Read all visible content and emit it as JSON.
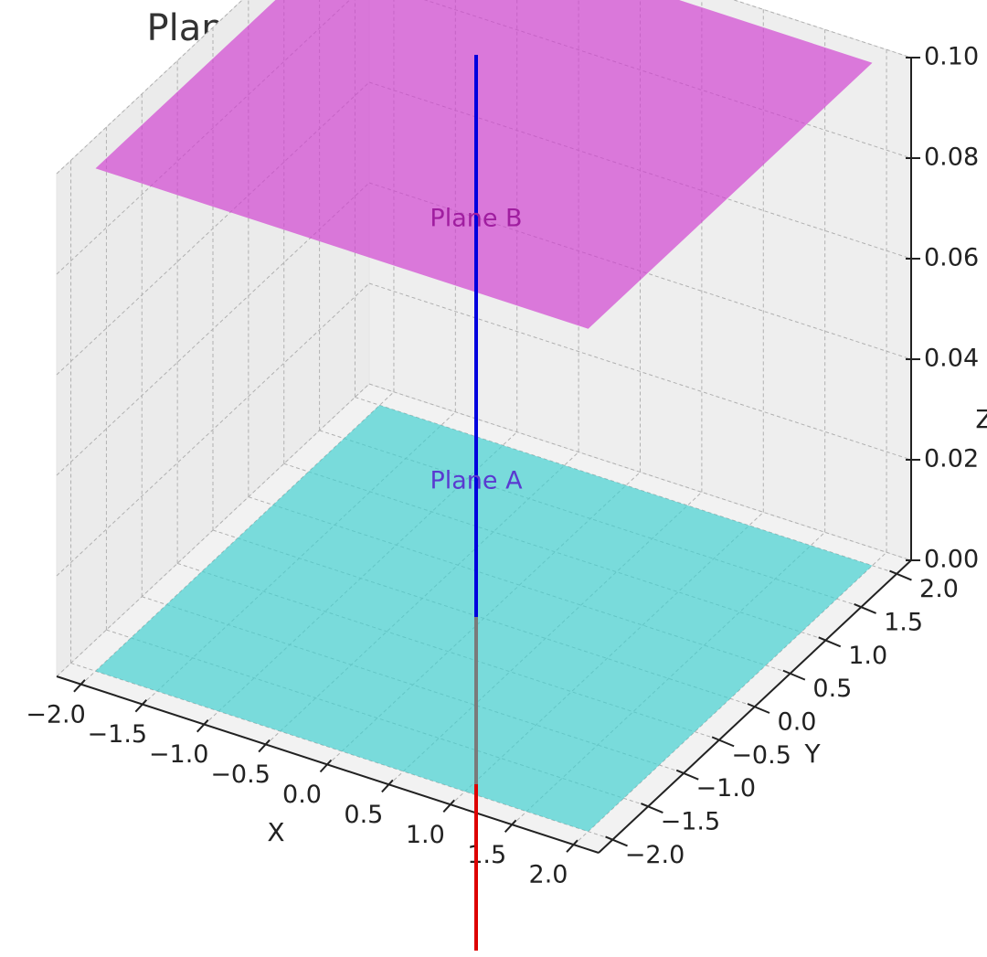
{
  "chart_data": {
    "type": "surface3d",
    "title": "Planes A & B with Normals Parallel",
    "xlabel": "X",
    "ylabel": "Y",
    "zlabel": "Z",
    "xlim": [
      -2.2,
      2.2
    ],
    "ylim": [
      -2.2,
      2.2
    ],
    "zlim": [
      0.0,
      0.1
    ],
    "xticks": [
      "−2.0",
      "−1.5",
      "−1.0",
      "−0.5",
      "0.0",
      "0.5",
      "1.0",
      "1.5",
      "2.0"
    ],
    "yticks": [
      "−2.0",
      "−1.5",
      "−1.0",
      "−0.5",
      "0.0",
      "0.5",
      "1.0",
      "1.5",
      "2.0"
    ],
    "zticks": [
      "0.00",
      "0.02",
      "0.04",
      "0.06",
      "0.08",
      "0.10"
    ],
    "grid": true,
    "series": [
      {
        "name": "Plane A",
        "kind": "plane",
        "z": 0.0,
        "x_range": [
          -2,
          2
        ],
        "y_range": [
          -2,
          2
        ],
        "color": "#40d0d0"
      },
      {
        "name": "Plane B",
        "kind": "plane",
        "z": 0.1,
        "x_range": [
          -2,
          2
        ],
        "y_range": [
          -2,
          2
        ],
        "color": "#d040d0"
      },
      {
        "kind": "normal",
        "color": "#0000dd"
      },
      {
        "kind": "normal",
        "color": "#dd0000"
      }
    ],
    "annotations": [
      "Plane B",
      "Plane A"
    ]
  }
}
